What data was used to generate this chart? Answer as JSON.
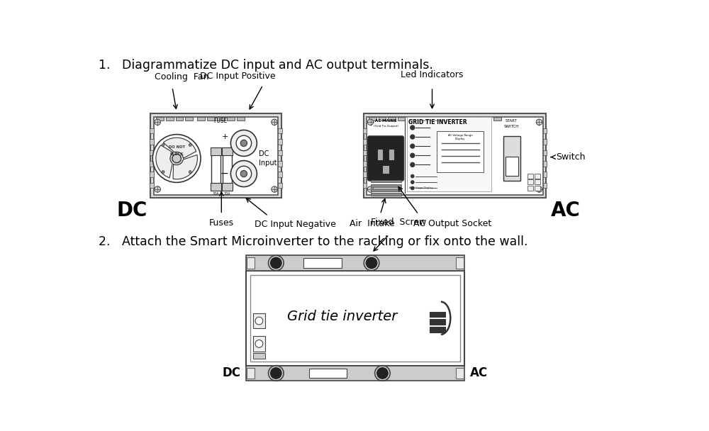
{
  "bg_color": "#ffffff",
  "title1": "1.   Diagrammatize DC input and AC output terminals.",
  "title2": "2.   Attach the Smart Microinverter to the racking or fix onto the wall.",
  "label_cooling_fan": "Cooling  Fan",
  "label_dc_input_pos": "DC Input Positive",
  "label_fuse": "FUSE",
  "label_dc_input": "DC\nInput",
  "label_fuses": "Fuses",
  "label_dc_input_neg": "DC Input Negative",
  "label_dc": "DC",
  "label_led": "Led Indicators",
  "label_switch": "Switch",
  "label_air_intake": "Air  Intake",
  "label_ac_output": "AC Output Socket",
  "label_ac": "AC",
  "label_fixed_screw": "Fixed  Screw",
  "label_grid_tie": "Grid tie inverter",
  "label_dc2": "DC",
  "label_ac2": "AC"
}
